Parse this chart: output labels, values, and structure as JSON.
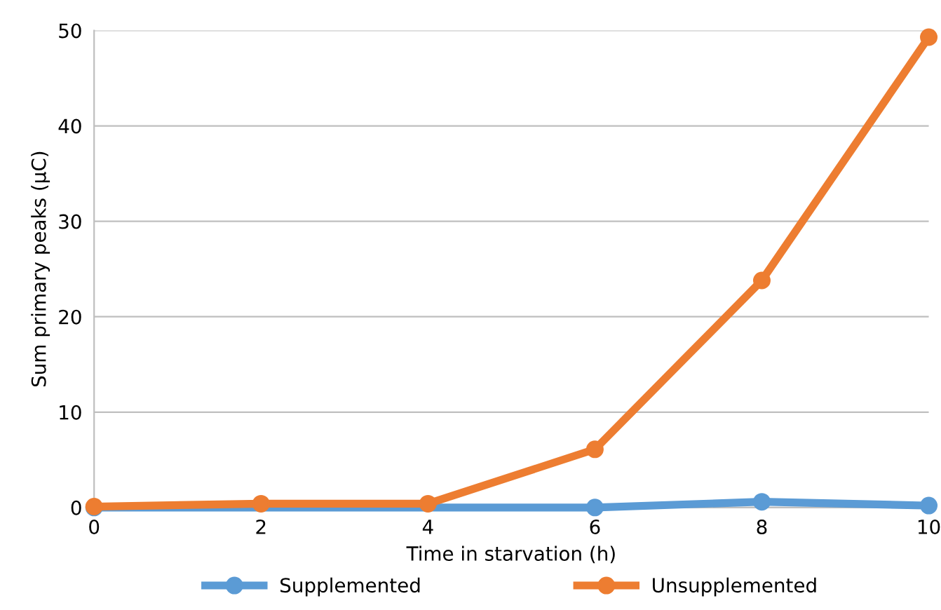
{
  "chart_data": {
    "type": "line",
    "xlabel": "Time in starvation (h)",
    "ylabel": "Sum primary peaks (µC)",
    "x": [
      0,
      2,
      4,
      6,
      8,
      10
    ],
    "series": [
      {
        "name": "Supplemented",
        "color": "#5b9bd5",
        "values": [
          0.0,
          null,
          null,
          0.0,
          0.6,
          0.2
        ]
      },
      {
        "name": "Unsupplemented",
        "color": "#ed7d31",
        "values": [
          0.1,
          0.4,
          0.4,
          6.1,
          23.8,
          49.3
        ]
      }
    ],
    "xlim": [
      0,
      10
    ],
    "xticks": [
      0,
      2,
      4,
      6,
      8,
      10
    ],
    "ylim": [
      0,
      50
    ],
    "yticks": [
      0,
      10,
      20,
      30,
      40,
      50
    ],
    "grid": "y",
    "legend": "bottom",
    "marker": "circle",
    "line_style": "solid"
  }
}
